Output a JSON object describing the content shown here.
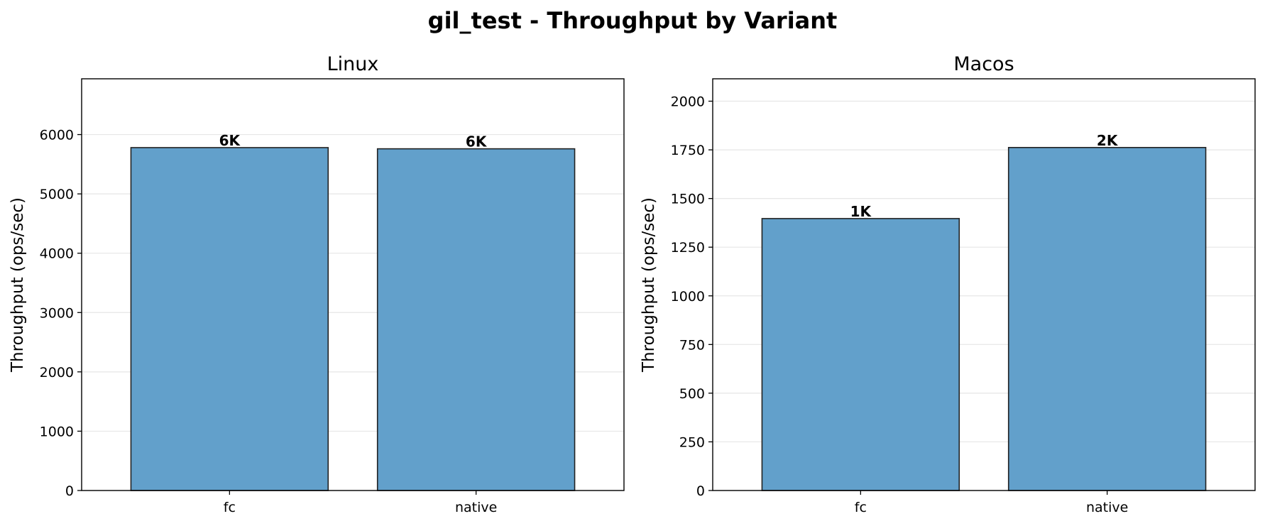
{
  "suptitle": "gil_test - Throughput by Variant",
  "colors": {
    "bar": "#62a0cb",
    "bar_edge": "#222222",
    "grid": "#e6e6e6"
  },
  "chart_data": [
    {
      "type": "bar",
      "title": "Linux",
      "xlabel": "",
      "ylabel": "Throughput (ops/sec)",
      "categories": [
        "fc",
        "native"
      ],
      "values": [
        5780,
        5760
      ],
      "value_labels": [
        "6K",
        "6K"
      ],
      "ylim": [
        0,
        6940
      ],
      "yticks": [
        0,
        1000,
        2000,
        3000,
        4000,
        5000,
        6000
      ],
      "ytick_labels": [
        "0",
        "1000",
        "2000",
        "3000",
        "4000",
        "5000",
        "6000"
      ],
      "grid": true
    },
    {
      "type": "bar",
      "title": "Macos",
      "xlabel": "",
      "ylabel": "Throughput (ops/sec)",
      "categories": [
        "fc",
        "native"
      ],
      "values": [
        1397,
        1762
      ],
      "value_labels": [
        "1K",
        "2K"
      ],
      "ylim": [
        0,
        2115
      ],
      "yticks": [
        0,
        250,
        500,
        750,
        1000,
        1250,
        1500,
        1750,
        2000
      ],
      "ytick_labels": [
        "0",
        "250",
        "500",
        "750",
        "1000",
        "1250",
        "1500",
        "1750",
        "2000"
      ],
      "grid": true
    }
  ]
}
